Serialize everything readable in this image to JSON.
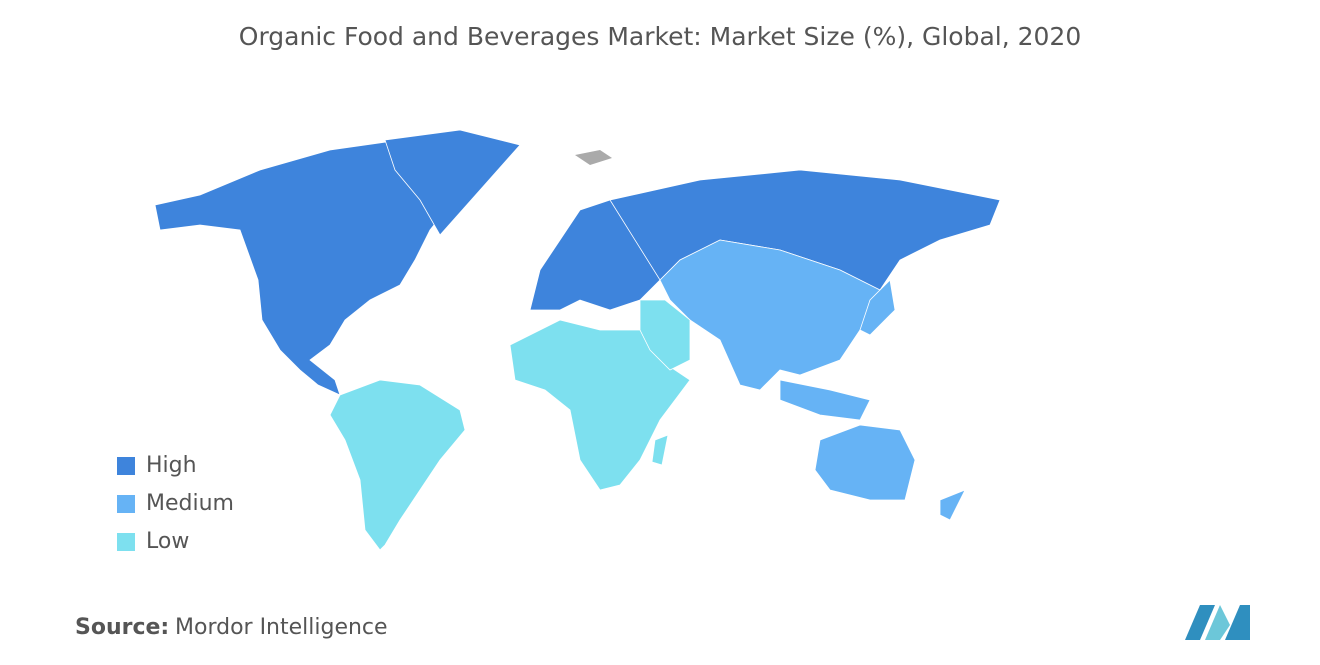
{
  "title": "Organic Food and Beverages Market: Market Size (%), Global, 2020",
  "legend": [
    {
      "label": "High",
      "color": "#3e84dc"
    },
    {
      "label": "Medium",
      "color": "#66b3f5"
    },
    {
      "label": "Low",
      "color": "#7de0ef"
    }
  ],
  "source": {
    "label": "Source:",
    "name": "Mordor Intelligence"
  }
}
